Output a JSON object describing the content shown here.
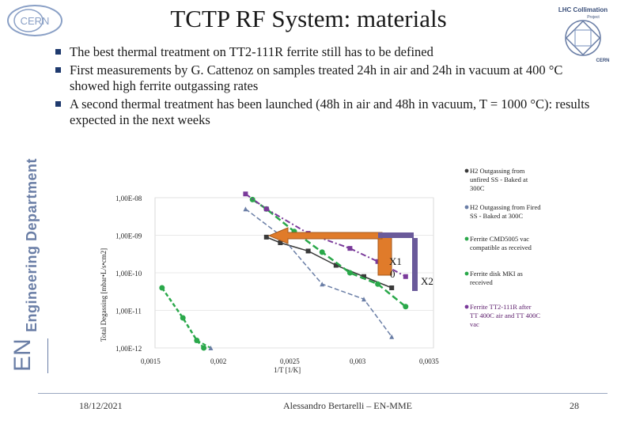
{
  "header": {
    "title": "TCTP RF System: materials",
    "logo_left": "CERN",
    "logo_right_line1": "LHC Collimation",
    "logo_right_line2": "Project",
    "logo_right_line3": "CERN"
  },
  "sidebar": {
    "department": "Engineering Department",
    "badge": "EN"
  },
  "bullets": [
    "The best thermal treatment on TT2-111R ferrite still has to be defined",
    "First measurements by G. Cattenoz on samples treated 24h in air and 24h in vacuum at 400 °C showed high ferrite outgassing rates",
    "A second thermal treatment has been launched (48h in air and 48h in vacuum, T = 1000 °C): results expected in the next weeks"
  ],
  "chart_data": {
    "type": "scatter",
    "ylabel": "Total Degassing [mbar•L/s•cm2]",
    "xlabel": "1/T [1/K]",
    "x_ticks": [
      "0,0015",
      "0,002",
      "0,0025",
      "0,003",
      "0,0035"
    ],
    "y_ticks": [
      "1,00E-08",
      "1,00E-09",
      "1,00E-10",
      "1,00E-11",
      "1,00E-12"
    ],
    "xlim": [
      0.0015,
      0.0035
    ],
    "ylim_log10": [
      -12,
      -8
    ],
    "annotations": [
      "X1",
      "0",
      "X2"
    ],
    "series": [
      {
        "name": "H2 Outgassing from unfired SS - Baked at 300C",
        "color": "#3a3a3a",
        "x": [
          0.0023,
          0.0024,
          0.0026,
          0.0028,
          0.003,
          0.0032
        ],
        "y": [
          -9.05,
          -9.2,
          -9.42,
          -9.8,
          -10.1,
          -10.4
        ]
      },
      {
        "name": "H2 Outgassing from Fired SS - Baked at 300C",
        "color": "#6a7ea6",
        "x": [
          0.0018,
          0.0019,
          0.00215,
          0.0024,
          0.0027,
          0.003,
          0.0032
        ],
        "y": [
          -11.8,
          -12.0,
          -8.3,
          -9.0,
          -10.3,
          -10.7,
          -11.7
        ]
      },
      {
        "name": "Ferrite CMD5005 vac compatible as received",
        "color": "#2aa84a",
        "x": [
          0.0022,
          0.0023,
          0.0025,
          0.0027,
          0.0029,
          0.0031,
          0.0033
        ],
        "y": [
          -8.05,
          -8.3,
          -8.9,
          -9.45,
          -10.0,
          -10.3,
          -10.9
        ]
      },
      {
        "name": "Ferrite disk MKI as received",
        "color": "#2aa84a",
        "x": [
          0.00155,
          0.0017,
          0.0018,
          0.00185
        ],
        "y": [
          -10.4,
          -11.2,
          -11.8,
          -12.0
        ]
      },
      {
        "name": "Ferrite TT2-111R after TT 400C air and TT 400C vac",
        "color": "#7a3a9a",
        "x": [
          0.00215,
          0.0023,
          0.0026,
          0.0029,
          0.0031,
          0.0033
        ],
        "y": [
          -7.9,
          -8.3,
          -8.95,
          -9.35,
          -9.7,
          -10.1
        ]
      }
    ]
  },
  "footer": {
    "date": "18/12/2021",
    "author": "Alessandro Bertarelli – EN-MME",
    "page": "28"
  }
}
